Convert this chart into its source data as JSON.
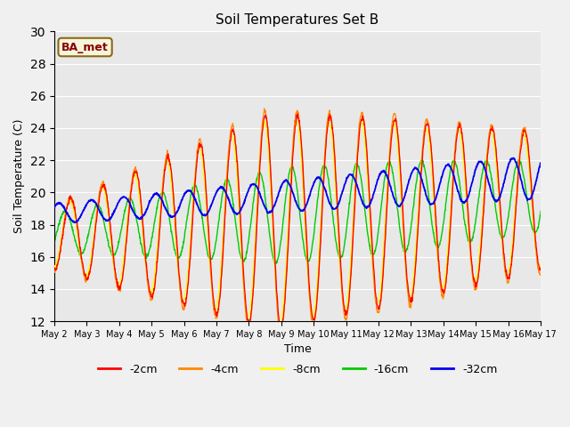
{
  "title": "Soil Temperatures Set B",
  "xlabel": "Time",
  "ylabel": "Soil Temperature (C)",
  "ylim": [
    12,
    30
  ],
  "yticks": [
    12,
    14,
    16,
    18,
    20,
    22,
    24,
    26,
    28,
    30
  ],
  "annotation": "BA_met",
  "fig_bg": "#f0f0f0",
  "plot_bg": "#e8e8e8",
  "grid_color": "#ffffff",
  "series_colors": {
    "-2cm": "#ff0000",
    "-4cm": "#ff8800",
    "-8cm": "#ffff00",
    "-16cm": "#00cc00",
    "-32cm": "#0000ee"
  },
  "legend_labels": [
    "-2cm",
    "-4cm",
    "-8cm",
    "-16cm",
    "-32cm"
  ]
}
